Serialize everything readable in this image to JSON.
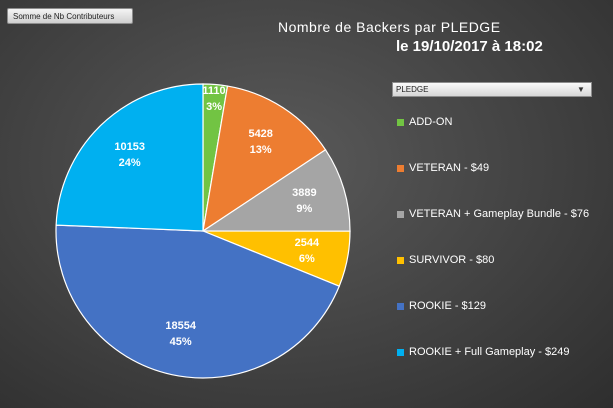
{
  "field_button": {
    "label": "Somme de Nb Contributeurs"
  },
  "legend_filter": {
    "label": "PLEDGE"
  },
  "chart_data": {
    "type": "pie",
    "title": "Nombre de Backers par PLEDGE",
    "subtitle": "le 19/10/2017 à 18:02",
    "legend_position": "right",
    "slices": [
      {
        "name": "ADD-ON",
        "value": 1110,
        "percent": "3%",
        "color": "#72c443"
      },
      {
        "name": "VETERAN - $49",
        "value": 5428,
        "percent": "13%",
        "color": "#ed7d31"
      },
      {
        "name": "VETERAN + Gameplay Bundle - $76",
        "value": 3889,
        "percent": "9%",
        "color": "#a5a5a5"
      },
      {
        "name": "SURVIVOR - $80",
        "value": 2544,
        "percent": "6%",
        "color": "#ffc000"
      },
      {
        "name": "ROOKIE - $129",
        "value": 18554,
        "percent": "45%",
        "color": "#4472c4"
      },
      {
        "name": "ROOKIE + Full Gameplay - $249",
        "value": 10153,
        "percent": "24%",
        "color": "#00b0f0"
      }
    ]
  }
}
